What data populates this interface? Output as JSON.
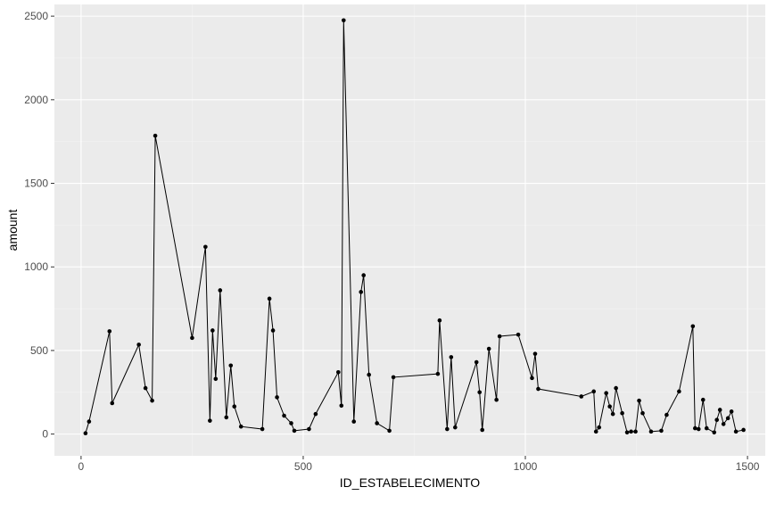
{
  "chart_data": {
    "type": "line",
    "title": "",
    "xlabel": "ID_ESTABELECIMENTO",
    "ylabel": "amount",
    "xlim": [
      -60,
      1540
    ],
    "ylim": [
      -130,
      2570
    ],
    "x_ticks": [
      0,
      500,
      1000,
      1500
    ],
    "x_tick_labels": [
      "0",
      "500",
      "1000",
      "1500"
    ],
    "y_ticks": [
      0,
      500,
      1000,
      1500,
      2000,
      2500
    ],
    "y_tick_labels": [
      "0",
      "500",
      "1000",
      "1500",
      "2000",
      "2500"
    ],
    "grid": true,
    "legend": "none",
    "colors": {
      "panel_background": "#ebebeb",
      "grid_major": "#ffffff",
      "grid_minor": "#f3f3f3",
      "line": "#000000",
      "point": "#000000",
      "tick_text": "#4d4d4d",
      "tick_mark": "#333333",
      "axis_title": "#000000"
    },
    "series": [
      {
        "x": [
          10,
          18,
          64,
          70,
          130,
          145,
          160,
          167,
          250,
          280,
          290,
          296,
          303,
          313,
          327,
          337,
          345,
          360,
          408,
          424,
          432,
          441,
          457,
          473,
          480,
          513,
          528,
          579,
          586,
          591,
          614,
          630,
          636,
          648,
          666,
          694,
          703,
          803,
          807,
          824,
          833,
          842,
          890,
          897,
          903,
          918,
          935,
          942,
          984,
          1015,
          1022,
          1029,
          1126,
          1154,
          1159,
          1166,
          1182,
          1190,
          1197,
          1204,
          1218,
          1229,
          1238,
          1248,
          1256,
          1264,
          1283,
          1306,
          1318,
          1346,
          1377,
          1382,
          1390,
          1400,
          1408,
          1425,
          1431,
          1438,
          1446,
          1456,
          1464,
          1474,
          1491
        ],
        "y": [
          5,
          75,
          615,
          185,
          535,
          275,
          200,
          1785,
          575,
          1120,
          80,
          620,
          330,
          860,
          100,
          410,
          165,
          45,
          30,
          810,
          620,
          220,
          110,
          65,
          20,
          30,
          120,
          370,
          170,
          2475,
          75,
          850,
          950,
          355,
          65,
          20,
          340,
          360,
          680,
          30,
          460,
          40,
          430,
          250,
          25,
          510,
          205,
          585,
          595,
          335,
          480,
          270,
          225,
          255,
          15,
          40,
          245,
          165,
          120,
          275,
          125,
          10,
          15,
          15,
          200,
          125,
          15,
          20,
          115,
          255,
          645,
          35,
          30,
          205,
          35,
          10,
          85,
          145,
          60,
          95,
          135,
          15,
          25
        ]
      }
    ]
  }
}
